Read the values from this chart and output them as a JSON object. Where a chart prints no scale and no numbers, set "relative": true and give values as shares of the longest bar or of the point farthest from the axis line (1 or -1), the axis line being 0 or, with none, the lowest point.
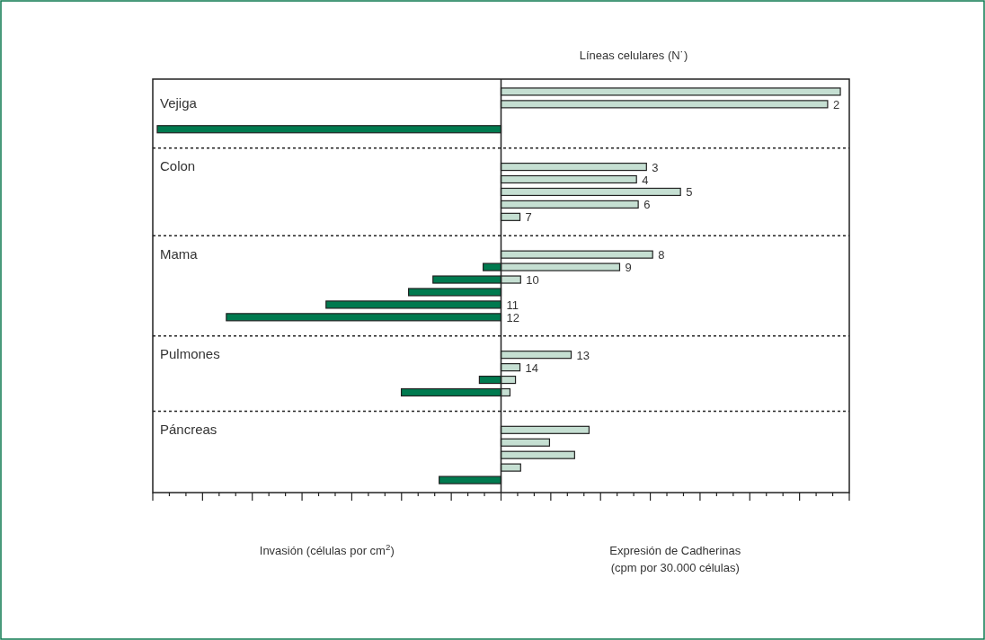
{
  "chart_data": {
    "type": "bar",
    "orientation": "horizontal",
    "relative": true,
    "ylabel": "Líneas celulares (N˙)",
    "xlabel": "Invasión (células por cm$^{2}$)",
    "annotations": [
      "Vejiga",
      "Colon",
      "Mama",
      "Pulmones",
      "Páncreas",
      "Expresión de Cadherinas\n(cpm por 30.000 células)"
    ],
    "categories": [
      null,
      "2",
      null,
      null,
      null,
      null,
      "3",
      "4",
      "5",
      "6",
      "7",
      null,
      null,
      "8",
      "9",
      "10",
      null,
      "11",
      "12",
      null,
      null,
      "13",
      "14",
      null,
      null,
      null,
      null,
      null,
      null,
      null,
      null,
      null
    ],
    "series": [
      {
        "color": "#c5dfd2",
        "values": [
          0.987,
          0.95,
          null,
          null,
          null,
          null,
          0.423,
          0.394,
          0.522,
          0.399,
          0.055,
          null,
          null,
          0.441,
          0.345,
          0.057,
          null,
          null,
          null,
          null,
          null,
          0.204,
          0.055,
          0.042,
          0.026,
          null,
          null,
          0.256,
          0.141,
          0.214,
          0.057,
          null
        ]
      },
      {
        "color": "#007a4f",
        "values": [
          null,
          null,
          null,
          -1,
          null,
          null,
          null,
          null,
          null,
          null,
          null,
          null,
          null,
          null,
          -0.052,
          -0.198,
          -0.269,
          -0.509,
          -0.799,
          null,
          null,
          null,
          null,
          -0.063,
          -0.29,
          null,
          null,
          null,
          null,
          null,
          null,
          -0.18
        ]
      }
    ]
  }
}
